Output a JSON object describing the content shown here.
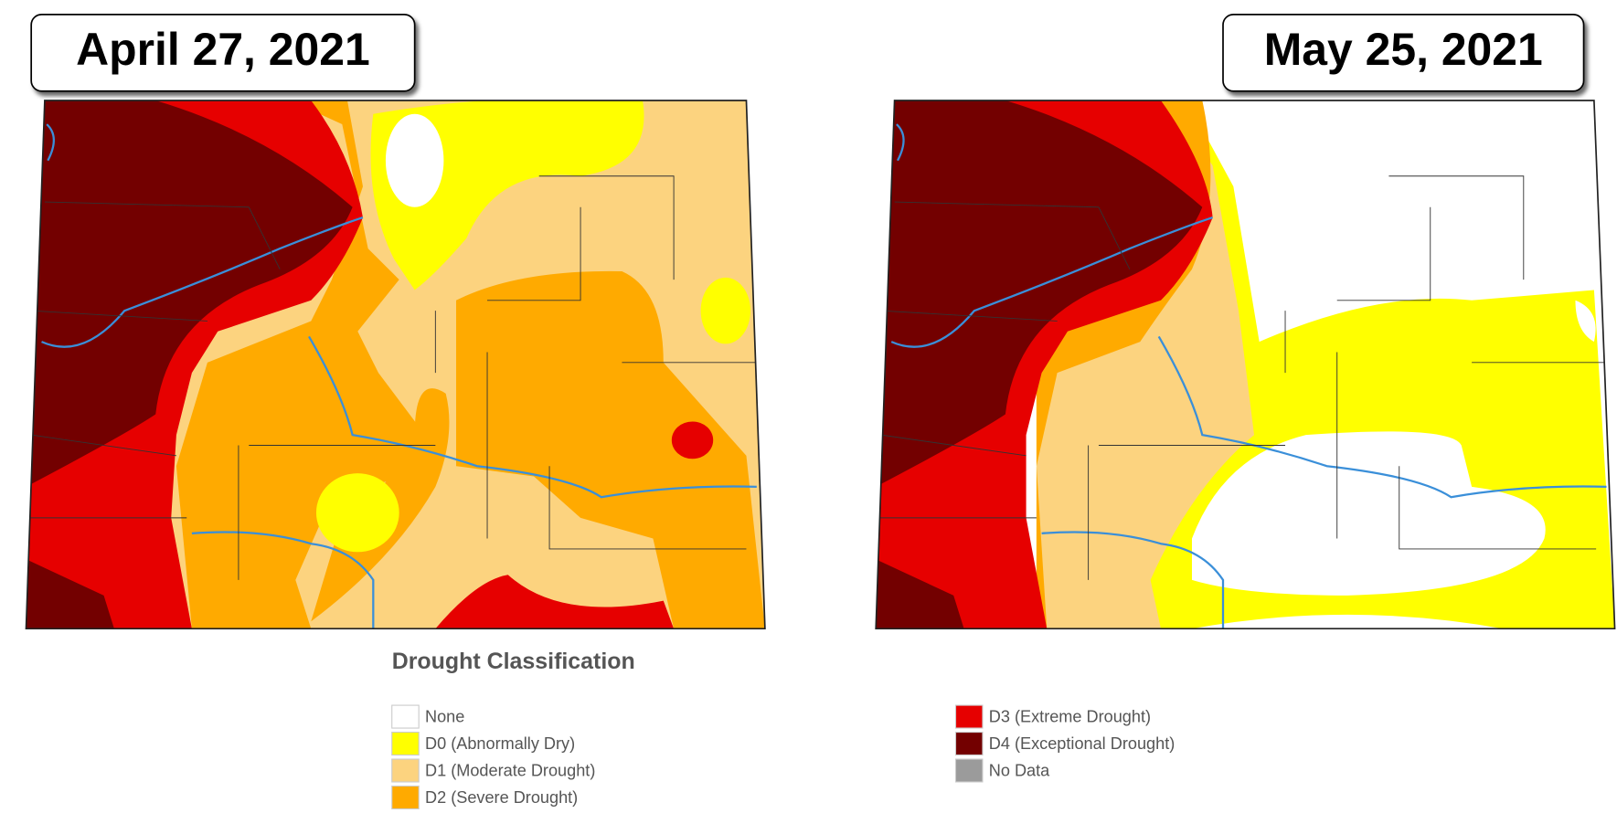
{
  "maps": [
    {
      "title": "April 27, 2021"
    },
    {
      "title": "May 25, 2021"
    }
  ],
  "legend": {
    "title": "Drought Classification",
    "items": [
      {
        "label": "None",
        "color": "#ffffff"
      },
      {
        "label": "D0 (Abnormally Dry)",
        "color": "#ffff00"
      },
      {
        "label": "D1 (Moderate Drought)",
        "color": "#fcd37f"
      },
      {
        "label": "D2 (Severe Drought)",
        "color": "#ffaa00"
      },
      {
        "label": "D3 (Extreme Drought)",
        "color": "#e60000"
      },
      {
        "label": "D4 (Exceptional Drought)",
        "color": "#730000"
      },
      {
        "label": "No Data",
        "color": "#9b9b9b"
      }
    ]
  }
}
